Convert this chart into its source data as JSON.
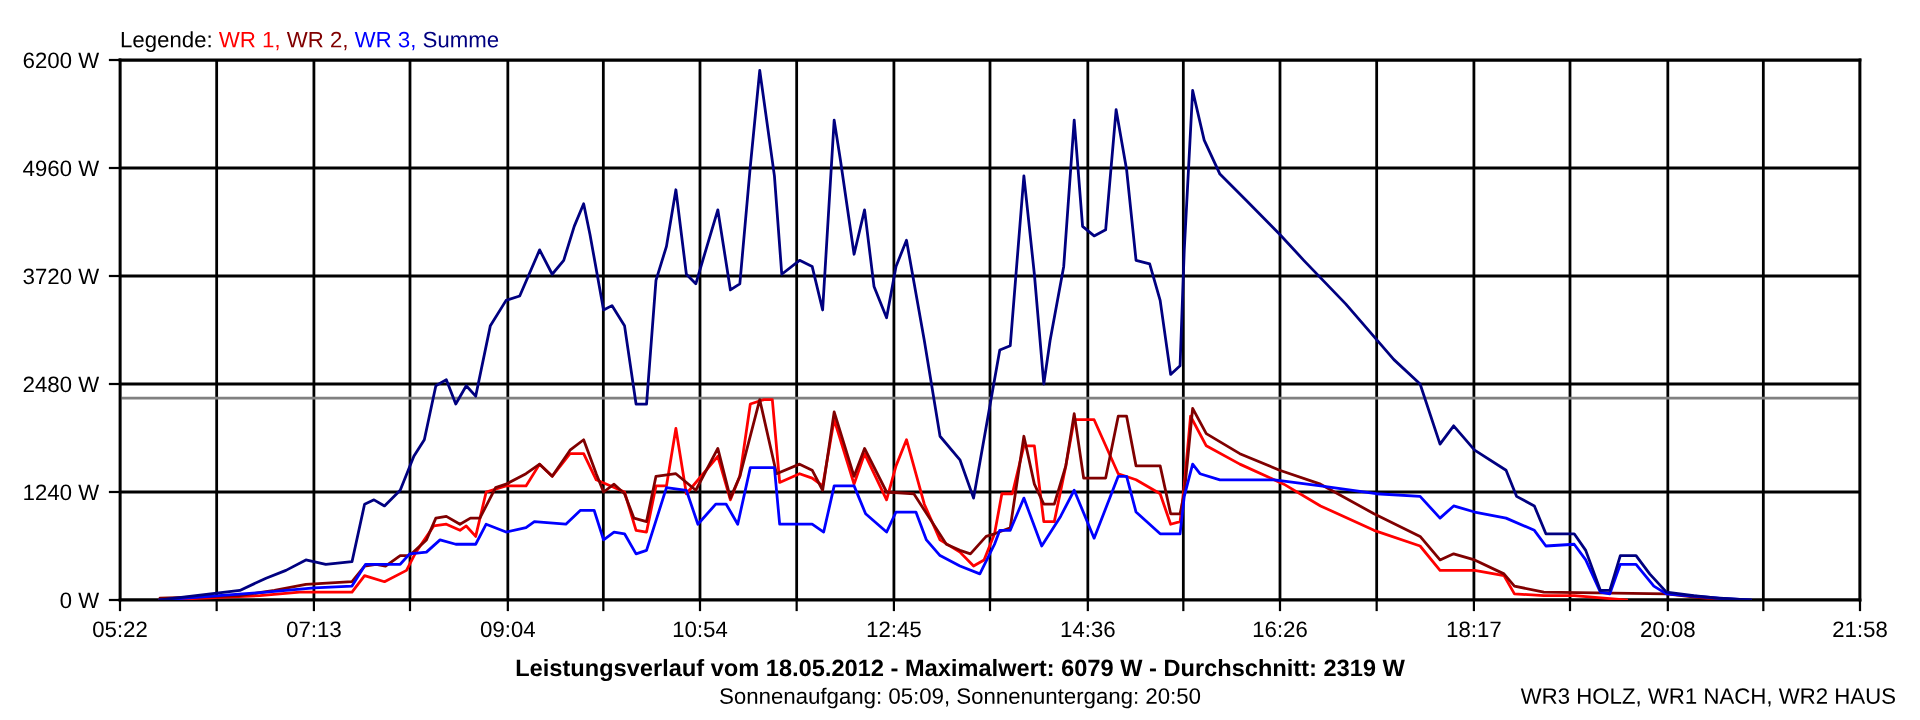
{
  "chart_data": {
    "type": "line",
    "title": "Leistungsverlauf vom 18.05.2012 - Maximalwert: 6079 W - Durchschnitt: 2319 W",
    "subtitle": "Sonnenaufgang: 05:09, Sonnenuntergang: 20:50",
    "annotations": [
      "WR3 HOLZ, WR1 NACH, WR2 HAUS"
    ],
    "legend_title": "Legende:",
    "legend": "top left",
    "grid": true,
    "marker": "none",
    "line_style": "solid",
    "xlim": [
      5.3667,
      21.9667
    ],
    "xticks": [
      {
        "value": 5.3667,
        "label": "05:22"
      },
      {
        "value": 6.2889,
        "label": null
      },
      {
        "value": 7.2167,
        "label": "07:13"
      },
      {
        "value": 8.1333,
        "label": null
      },
      {
        "value": 9.0667,
        "label": "09:04"
      },
      {
        "value": 9.9778,
        "label": null
      },
      {
        "value": 10.9,
        "label": "10:54"
      },
      {
        "value": 11.8222,
        "label": null
      },
      {
        "value": 12.75,
        "label": "12:45"
      },
      {
        "value": 13.6667,
        "label": null
      },
      {
        "value": 14.6,
        "label": "14:36"
      },
      {
        "value": 15.5111,
        "label": null
      },
      {
        "value": 16.4333,
        "label": "16:26"
      },
      {
        "value": 17.3556,
        "label": null
      },
      {
        "value": 18.2833,
        "label": "18:17"
      },
      {
        "value": 19.2,
        "label": null
      },
      {
        "value": 20.1333,
        "label": "20:08"
      },
      {
        "value": 21.0444,
        "label": null
      },
      {
        "value": 21.9667,
        "label": "21:58"
      }
    ],
    "ylim": [
      0,
      6200
    ],
    "yticks": [
      {
        "value": 0,
        "label": "0 W"
      },
      {
        "value": 1240,
        "label": "1240 W"
      },
      {
        "value": 2480,
        "label": "2480 W"
      },
      {
        "value": 3720,
        "label": "3720 W"
      },
      {
        "value": 4960,
        "label": "4960 W"
      },
      {
        "value": 6200,
        "label": "6200 W"
      }
    ],
    "ref_lines": [
      {
        "axis": "y",
        "value": 2319,
        "color": "#808080"
      }
    ],
    "series": [
      {
        "name": "WR 1,",
        "color": "#ff0000",
        "x": [
          5.75,
          6.7,
          7.08,
          7.58,
          7.7,
          7.89,
          8.1,
          8.19,
          8.36,
          8.48,
          8.61,
          8.67,
          8.76,
          8.86,
          9.05,
          9.24,
          9.37,
          9.49,
          9.66,
          9.79,
          9.91,
          10.18,
          10.29,
          10.39,
          10.48,
          10.58,
          10.67,
          10.77,
          11.07,
          11.19,
          11.28,
          11.38,
          11.51,
          11.59,
          11.66,
          11.85,
          11.97,
          12.07,
          12.18,
          12.37,
          12.47,
          12.68,
          12.77,
          12.87,
          13.04,
          13.19,
          13.38,
          13.51,
          13.61,
          13.71,
          13.78,
          13.88,
          13.99,
          14.09,
          14.18,
          14.28,
          14.39,
          14.47,
          14.66,
          14.89,
          15.06,
          15.29,
          15.39,
          15.48,
          15.52,
          15.58,
          15.73,
          16.05,
          16.47,
          16.82,
          17.33,
          17.77,
          17.96,
          18.29,
          18.57,
          18.67,
          18.95,
          19.24,
          19.74
        ],
        "values": [
          0,
          50,
          90,
          90,
          280,
          210,
          340,
          550,
          850,
          870,
          800,
          850,
          730,
          1240,
          1310,
          1310,
          1560,
          1420,
          1680,
          1680,
          1380,
          1240,
          800,
          780,
          1310,
          1310,
          1970,
          1220,
          1650,
          1150,
          1420,
          2250,
          2300,
          2300,
          1350,
          1450,
          1400,
          1310,
          2070,
          1330,
          1680,
          1150,
          1540,
          1840,
          1100,
          690,
          550,
          390,
          460,
          760,
          1220,
          1220,
          1770,
          1770,
          900,
          900,
          1540,
          2070,
          2070,
          1450,
          1380,
          1220,
          870,
          900,
          1310,
          2110,
          1770,
          1560,
          1330,
          1080,
          800,
          620,
          340,
          340,
          280,
          70,
          50,
          50,
          0
        ]
      },
      {
        "name": "WR 2,",
        "color": "#800000",
        "x": [
          5.75,
          6.51,
          6.84,
          7.14,
          7.58,
          7.7,
          7.81,
          7.9,
          8.04,
          8.13,
          8.29,
          8.38,
          8.48,
          8.61,
          8.71,
          8.8,
          8.95,
          9.05,
          9.24,
          9.37,
          9.49,
          9.66,
          9.79,
          9.91,
          9.98,
          10.08,
          10.18,
          10.27,
          10.39,
          10.48,
          10.67,
          10.86,
          11.07,
          11.19,
          11.28,
          11.47,
          11.63,
          11.85,
          11.97,
          12.07,
          12.18,
          12.37,
          12.47,
          12.68,
          12.94,
          13.1,
          13.25,
          13.38,
          13.48,
          13.63,
          13.71,
          13.86,
          13.99,
          14.09,
          14.18,
          14.28,
          14.39,
          14.47,
          14.56,
          14.77,
          14.89,
          14.97,
          15.06,
          15.29,
          15.39,
          15.48,
          15.52,
          15.6,
          15.73,
          16.05,
          16.43,
          16.82,
          17.33,
          17.77,
          17.96,
          18.09,
          18.29,
          18.57,
          18.67,
          18.95,
          20.12,
          20.63
        ],
        "values": [
          20,
          50,
          110,
          180,
          210,
          390,
          410,
          390,
          510,
          510,
          690,
          940,
          960,
          870,
          940,
          940,
          1290,
          1330,
          1450,
          1560,
          1420,
          1720,
          1840,
          1450,
          1240,
          1330,
          1220,
          940,
          900,
          1420,
          1450,
          1260,
          1740,
          1170,
          1420,
          2300,
          1450,
          1560,
          1490,
          1260,
          2160,
          1420,
          1740,
          1240,
          1220,
          920,
          640,
          570,
          530,
          730,
          760,
          830,
          1880,
          1330,
          1100,
          1100,
          1540,
          2140,
          1400,
          1400,
          2110,
          2110,
          1540,
          1540,
          990,
          990,
          1220,
          2200,
          1910,
          1680,
          1490,
          1330,
          990,
          730,
          460,
          530,
          460,
          300,
          160,
          90,
          70,
          0
        ]
      },
      {
        "name": "WR 3,",
        "color": "#0000ff",
        "x": [
          5.75,
          6.76,
          7.22,
          7.58,
          7.71,
          8.04,
          8.13,
          8.29,
          8.42,
          8.57,
          8.76,
          8.86,
          9.05,
          9.24,
          9.32,
          9.62,
          9.76,
          9.89,
          9.98,
          10.08,
          10.18,
          10.29,
          10.39,
          10.58,
          10.77,
          10.88,
          11.05,
          11.15,
          11.26,
          11.38,
          11.61,
          11.66,
          11.97,
          12.08,
          12.18,
          12.37,
          12.48,
          12.68,
          12.77,
          12.96,
          13.06,
          13.19,
          13.38,
          13.57,
          13.71,
          13.76,
          13.86,
          13.99,
          14.16,
          14.34,
          14.47,
          14.66,
          14.89,
          14.97,
          15.06,
          15.29,
          15.48,
          15.52,
          15.6,
          15.67,
          15.86,
          16.38,
          16.82,
          17.35,
          17.77,
          17.96,
          18.09,
          18.29,
          18.59,
          18.86,
          18.97,
          19.24,
          19.35,
          19.49,
          19.58,
          19.68,
          19.83,
          20.0,
          20.12,
          20.63,
          20.92
        ],
        "values": [
          0,
          90,
          140,
          160,
          410,
          410,
          530,
          550,
          690,
          640,
          640,
          870,
          780,
          830,
          900,
          870,
          1030,
          1030,
          690,
          780,
          760,
          530,
          570,
          1290,
          1260,
          870,
          1100,
          1100,
          870,
          1520,
          1520,
          870,
          870,
          780,
          1310,
          1310,
          990,
          780,
          1010,
          1010,
          690,
          510,
          390,
          300,
          640,
          800,
          800,
          1170,
          620,
          960,
          1260,
          710,
          1420,
          1420,
          1010,
          760,
          760,
          1190,
          1560,
          1450,
          1380,
          1380,
          1310,
          1220,
          1190,
          940,
          1080,
          1010,
          940,
          800,
          620,
          640,
          460,
          90,
          70,
          410,
          410,
          160,
          70,
          20,
          0
        ]
      },
      {
        "name": "Summe",
        "color": "#000080",
        "x": [
          5.75,
          6.51,
          6.76,
          6.95,
          7.14,
          7.33,
          7.58,
          7.7,
          7.79,
          7.89,
          8.04,
          8.17,
          8.27,
          8.38,
          8.48,
          8.57,
          8.67,
          8.76,
          8.9,
          9.05,
          9.18,
          9.37,
          9.49,
          9.6,
          9.7,
          9.79,
          9.85,
          9.98,
          10.06,
          10.18,
          10.29,
          10.39,
          10.48,
          10.58,
          10.67,
          10.77,
          10.86,
          11.07,
          11.19,
          11.28,
          11.38,
          11.47,
          11.61,
          11.68,
          11.85,
          11.97,
          12.07,
          12.18,
          12.24,
          12.37,
          12.47,
          12.56,
          12.68,
          12.77,
          12.87,
          13.04,
          13.19,
          13.38,
          13.51,
          13.76,
          13.86,
          13.99,
          14.09,
          14.18,
          14.24,
          14.37,
          14.47,
          14.55,
          14.66,
          14.77,
          14.87,
          14.97,
          15.06,
          15.19,
          15.29,
          15.39,
          15.48,
          15.52,
          15.6,
          15.71,
          15.86,
          16.11,
          16.43,
          16.66,
          17.06,
          17.52,
          17.77,
          17.96,
          18.09,
          18.29,
          18.59,
          18.69,
          18.86,
          18.97,
          19.24,
          19.35,
          19.49,
          19.58,
          19.68,
          19.83,
          19.96,
          20.12,
          20.38,
          20.63,
          20.92
        ],
        "values": [
          0,
          110,
          250,
          340,
          460,
          410,
          440,
          1100,
          1150,
          1080,
          1260,
          1650,
          1840,
          2460,
          2530,
          2250,
          2460,
          2340,
          3150,
          3440,
          3490,
          4020,
          3740,
          3900,
          4290,
          4550,
          4200,
          3330,
          3380,
          3150,
          2250,
          2250,
          3670,
          4060,
          4710,
          3740,
          3630,
          4480,
          3560,
          3630,
          4980,
          6080,
          4870,
          3740,
          3900,
          3830,
          3330,
          5510,
          5050,
          3970,
          4480,
          3600,
          3240,
          3830,
          4130,
          2980,
          1880,
          1610,
          1170,
          2870,
          2920,
          4870,
          3740,
          2480,
          2980,
          3830,
          5510,
          4290,
          4180,
          4250,
          5630,
          4940,
          3900,
          3860,
          3440,
          2590,
          2690,
          4020,
          5850,
          5280,
          4890,
          4590,
          4200,
          3900,
          3400,
          2760,
          2480,
          1790,
          2000,
          1720,
          1490,
          1190,
          1080,
          760,
          760,
          570,
          110,
          110,
          510,
          510,
          300,
          90,
          50,
          20,
          0
        ]
      }
    ]
  }
}
